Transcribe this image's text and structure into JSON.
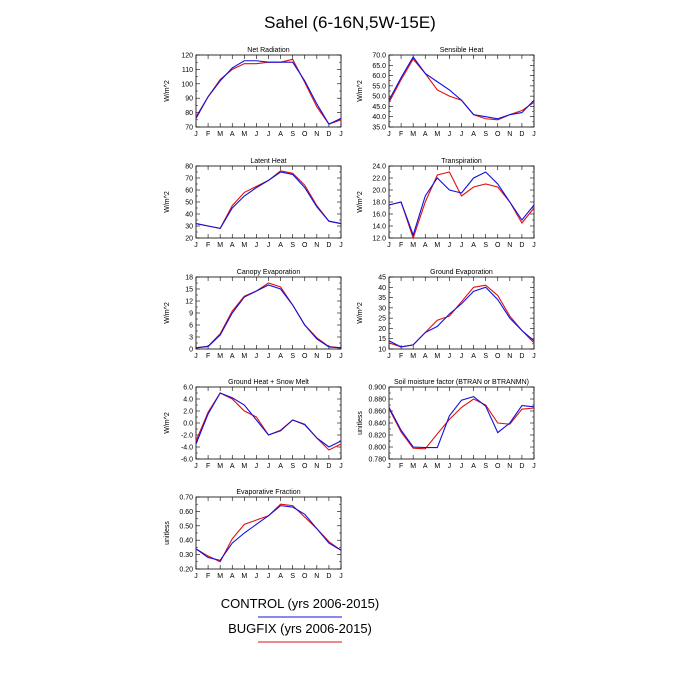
{
  "title": "Sahel (6-16N,5W-15E)",
  "months": [
    "J",
    "F",
    "M",
    "A",
    "M",
    "J",
    "J",
    "A",
    "S",
    "O",
    "N",
    "D",
    "J"
  ],
  "legend": [
    {
      "name": "CONTROL (yrs 2006-2015)",
      "color": "#1010e0"
    },
    {
      "name": "BUGFIX (yrs 2006-2015)",
      "color": "#e01010"
    }
  ],
  "chart_data": [
    {
      "type": "line",
      "title": "Net Radiation",
      "ylabel": "W/m^2",
      "ylim": [
        70,
        120
      ],
      "yticks": [
        "70",
        "80",
        "90",
        "100",
        "110",
        "120"
      ],
      "series": [
        {
          "name": "CONTROL (yrs 2006-2015)",
          "color": "#1010e0",
          "values": [
            76,
            91,
            102,
            111,
            116,
            116,
            115,
            115,
            115,
            102,
            86,
            72,
            76
          ]
        },
        {
          "name": "BUGFIX (yrs 2006-2015)",
          "color": "#e01010",
          "values": [
            77,
            91,
            103,
            110,
            114,
            114,
            115,
            115,
            117,
            101,
            84,
            72,
            75
          ]
        }
      ]
    },
    {
      "type": "line",
      "title": "Sensible Heat",
      "ylabel": "W/m^2",
      "ylim": [
        35,
        70
      ],
      "yticks": [
        "35.0",
        "40.0",
        "45.0",
        "50.0",
        "55.0",
        "60.0",
        "65.0",
        "70.0"
      ],
      "series": [
        {
          "name": "CONTROL (yrs 2006-2015)",
          "color": "#1010e0",
          "values": [
            48,
            59,
            69,
            61,
            57,
            53,
            48,
            41,
            40,
            39,
            41,
            42,
            48
          ]
        },
        {
          "name": "BUGFIX (yrs 2006-2015)",
          "color": "#e01010",
          "values": [
            47,
            58,
            68,
            61,
            53,
            50,
            48,
            41,
            39,
            38.5,
            41,
            43,
            47
          ]
        }
      ]
    },
    {
      "type": "line",
      "title": "Latent Heat",
      "ylabel": "W/m^2",
      "ylim": [
        20,
        80
      ],
      "yticks": [
        "20",
        "30",
        "40",
        "50",
        "60",
        "70",
        "80"
      ],
      "series": [
        {
          "name": "CONTROL (yrs 2006-2015)",
          "color": "#1010e0",
          "values": [
            32,
            30,
            28,
            45,
            55,
            62,
            68,
            75,
            73,
            62,
            46,
            34,
            32
          ]
        },
        {
          "name": "BUGFIX (yrs 2006-2015)",
          "color": "#e01010",
          "values": [
            32,
            30,
            28,
            47,
            58,
            63,
            68,
            76,
            74,
            64,
            47,
            34,
            32
          ]
        }
      ]
    },
    {
      "type": "line",
      "title": "Transpiration",
      "ylabel": "W/m^2",
      "ylim": [
        12,
        24
      ],
      "yticks": [
        "12.0",
        "14.0",
        "16.0",
        "18.0",
        "20.0",
        "22.0",
        "24.0"
      ],
      "series": [
        {
          "name": "CONTROL (yrs 2006-2015)",
          "color": "#1010e0",
          "values": [
            17.5,
            18,
            12.5,
            19,
            22,
            20,
            19.5,
            22,
            23,
            21,
            18,
            15,
            17.5
          ]
        },
        {
          "name": "BUGFIX (yrs 2006-2015)",
          "color": "#e01010",
          "values": [
            17.5,
            18,
            12,
            18,
            22.5,
            23,
            19,
            20.5,
            21,
            20.5,
            18,
            14.5,
            17
          ]
        }
      ]
    },
    {
      "type": "line",
      "title": "Canopy Evaporation",
      "ylabel": "W/m^2",
      "ylim": [
        0,
        18
      ],
      "yticks": [
        "0",
        "3",
        "6",
        "9",
        "12",
        "15",
        "18"
      ],
      "series": [
        {
          "name": "CONTROL (yrs 2006-2015)",
          "color": "#1010e0",
          "values": [
            0.3,
            0.6,
            3.5,
            9,
            13,
            14.5,
            16,
            15,
            11,
            6,
            2.5,
            0.5,
            0.3
          ]
        },
        {
          "name": "BUGFIX (yrs 2006-2015)",
          "color": "#e01010",
          "values": [
            0.3,
            0.7,
            3.8,
            9.5,
            13.2,
            14.5,
            16.5,
            15.5,
            11,
            6,
            2.8,
            0.6,
            0.3
          ]
        }
      ]
    },
    {
      "type": "line",
      "title": "Ground Evaporation",
      "ylabel": "W/m^2",
      "ylim": [
        10,
        45
      ],
      "yticks": [
        "10",
        "15",
        "20",
        "25",
        "30",
        "35",
        "40",
        "45"
      ],
      "series": [
        {
          "name": "CONTROL (yrs 2006-2015)",
          "color": "#1010e0",
          "values": [
            14,
            11,
            12,
            18,
            21,
            27,
            32,
            38,
            40,
            34,
            25,
            19,
            14
          ]
        },
        {
          "name": "BUGFIX (yrs 2006-2015)",
          "color": "#e01010",
          "values": [
            13,
            11,
            12,
            18,
            24,
            26,
            33,
            40,
            41,
            36,
            26,
            19,
            13
          ]
        }
      ]
    },
    {
      "type": "line",
      "title": "Ground Heat + Snow Melt",
      "ylabel": "W/m^2",
      "ylim": [
        -6,
        6
      ],
      "yticks": [
        "-6.0",
        "-4.0",
        "-2.0",
        "0.0",
        "2.0",
        "4.0",
        "6.0"
      ],
      "series": [
        {
          "name": "CONTROL (yrs 2006-2015)",
          "color": "#1010e0",
          "values": [
            -3.5,
            1.5,
            5,
            4.2,
            3,
            0.5,
            -2,
            -1.3,
            0.5,
            -0.3,
            -2.5,
            -4,
            -3
          ]
        },
        {
          "name": "BUGFIX (yrs 2006-2015)",
          "color": "#e01010",
          "values": [
            -3,
            1.8,
            5,
            4,
            2,
            1,
            -2,
            -1.2,
            0.5,
            -0.2,
            -2.5,
            -4.5,
            -3.5
          ]
        }
      ]
    },
    {
      "type": "line",
      "title": "Soil moisture factor (BTRAN or BTRANMN)",
      "ylabel": "unitless",
      "ylim": [
        0.78,
        0.9
      ],
      "yticks": [
        "0.780",
        "0.800",
        "0.820",
        "0.840",
        "0.860",
        "0.880",
        "0.900"
      ],
      "series": [
        {
          "name": "CONTROL (yrs 2006-2015)",
          "color": "#1010e0",
          "values": [
            0.866,
            0.828,
            0.8,
            0.799,
            0.799,
            0.852,
            0.878,
            0.884,
            0.868,
            0.824,
            0.84,
            0.869,
            0.867
          ]
        },
        {
          "name": "BUGFIX (yrs 2006-2015)",
          "color": "#e01010",
          "values": [
            0.864,
            0.825,
            0.798,
            0.797,
            0.822,
            0.846,
            0.866,
            0.88,
            0.87,
            0.84,
            0.838,
            0.863,
            0.865
          ]
        }
      ]
    },
    {
      "type": "line",
      "title": "Evaporative Fraction",
      "ylabel": "unitless",
      "ylim": [
        0.2,
        0.7
      ],
      "yticks": [
        "0.20",
        "0.30",
        "0.40",
        "0.50",
        "0.60",
        "0.70"
      ],
      "series": [
        {
          "name": "CONTROL (yrs 2006-2015)",
          "color": "#1010e0",
          "values": [
            0.34,
            0.28,
            0.26,
            0.38,
            0.45,
            0.51,
            0.57,
            0.64,
            0.63,
            0.58,
            0.48,
            0.38,
            0.33
          ]
        },
        {
          "name": "BUGFIX (yrs 2006-2015)",
          "color": "#e01010",
          "values": [
            0.34,
            0.29,
            0.25,
            0.41,
            0.51,
            0.54,
            0.57,
            0.65,
            0.64,
            0.56,
            0.48,
            0.39,
            0.33
          ]
        }
      ]
    }
  ]
}
